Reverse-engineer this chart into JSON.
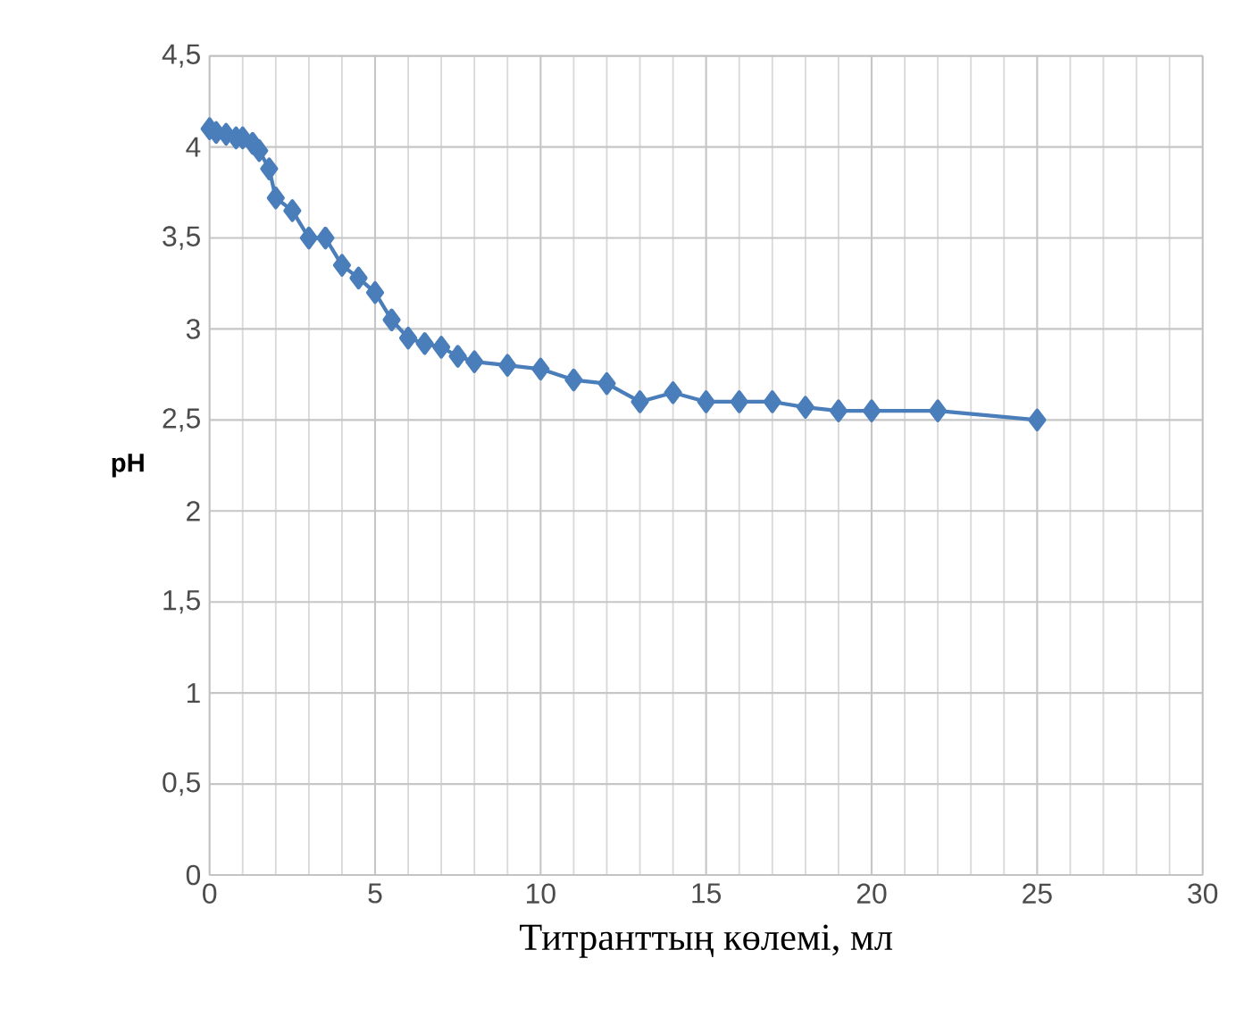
{
  "chart_data": {
    "type": "line",
    "xlabel": "Титранттың көлемі, мл",
    "ylabel": "pH",
    "x": [
      0,
      0.2,
      0.5,
      0.8,
      1,
      1.3,
      1.5,
      1.8,
      2,
      2.5,
      3,
      3.5,
      4,
      4.5,
      5,
      5.5,
      6,
      6.5,
      7,
      7.5,
      8,
      9,
      10,
      11,
      12,
      13,
      14,
      15,
      16,
      17,
      18,
      19,
      20,
      22,
      25
    ],
    "series": [
      {
        "color": "#4a7ebb",
        "values": [
          4.1,
          4.08,
          4.07,
          4.05,
          4.05,
          4.02,
          3.98,
          3.88,
          3.72,
          3.65,
          3.5,
          3.5,
          3.35,
          3.28,
          3.2,
          3.05,
          2.95,
          2.92,
          2.9,
          2.85,
          2.82,
          2.8,
          2.78,
          2.72,
          2.7,
          2.6,
          2.65,
          2.6,
          2.6,
          2.6,
          2.57,
          2.55,
          2.55,
          2.55,
          2.5
        ]
      }
    ],
    "xlim": [
      0,
      30
    ],
    "xticks": [
      0,
      5,
      10,
      15,
      20,
      25,
      30
    ],
    "ylim": [
      0,
      4.5
    ],
    "yticks": [
      0,
      {
        "value": 0.5,
        "label": "0,5"
      },
      1,
      {
        "value": 1.5,
        "label": "1,5"
      },
      2,
      {
        "value": 2.5,
        "label": "2,5"
      },
      3,
      {
        "value": 3.5,
        "label": "3,5"
      },
      4,
      {
        "value": 4.5,
        "label": "4,5"
      }
    ],
    "grid": true,
    "marker": "diamond",
    "line_style": "solid"
  }
}
